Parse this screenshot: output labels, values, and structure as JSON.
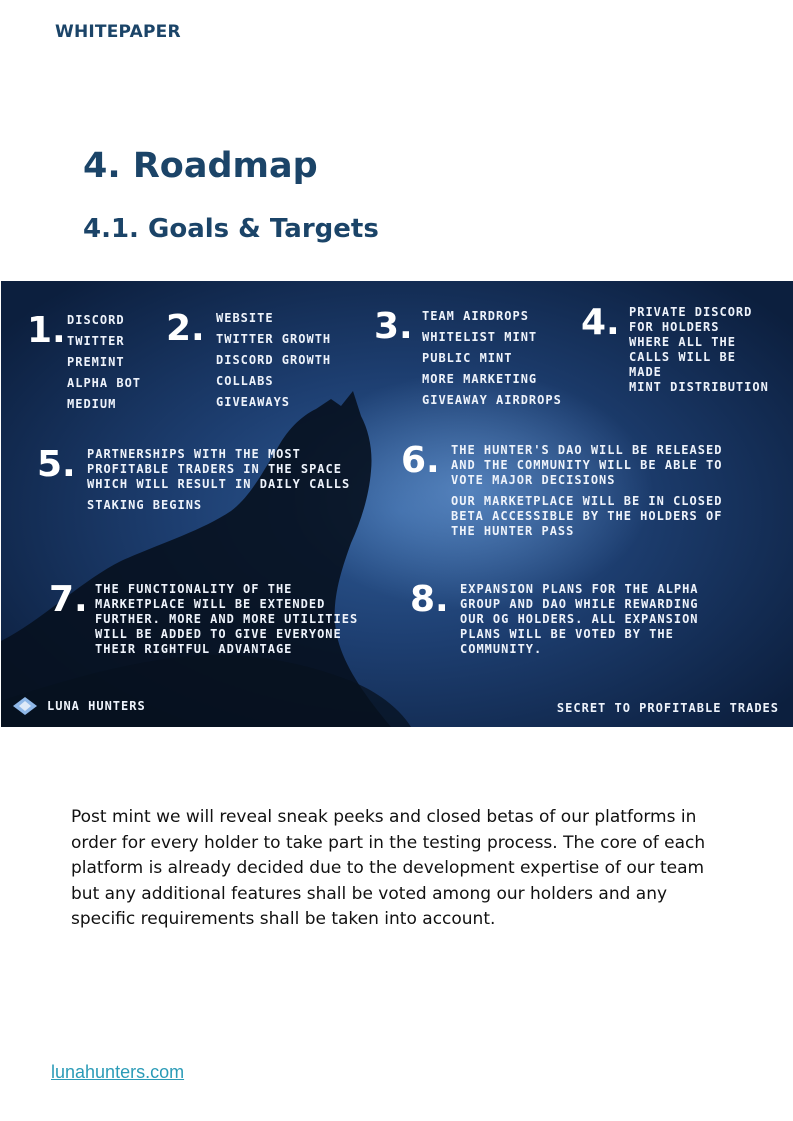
{
  "header": {
    "label": "WHITEPAPER"
  },
  "section": {
    "title": "4. Roadmap",
    "subtitle": "4.1. Goals & Targets"
  },
  "roadmap": {
    "steps": [
      {
        "number": "1.",
        "items": [
          "DISCORD",
          "TWITTER",
          "PREMINT",
          "ALPHA BOT",
          "MEDIUM"
        ]
      },
      {
        "number": "2.",
        "items": [
          "WEBSITE",
          "TWITTER GROWTH",
          "DISCORD GROWTH",
          "COLLABS",
          "GIVEAWAYS"
        ]
      },
      {
        "number": "3.",
        "items": [
          "TEAM AIRDROPS",
          "WHITELIST MINT",
          "PUBLIC MINT",
          "MORE MARKETING",
          "GIVEAWAY AIRDROPS"
        ]
      },
      {
        "number": "4.",
        "items": [
          "PRIVATE DISCORD",
          "FOR HOLDERS",
          "WHERE ALL THE",
          "CALLS WILL BE",
          "MADE",
          "MINT DISTRIBUTION"
        ]
      },
      {
        "number": "5.",
        "items": [
          "PARTNERSHIPS WITH THE MOST",
          "PROFITABLE TRADERS IN THE SPACE",
          "WHICH WILL RESULT IN DAILY CALLS",
          "STAKING BEGINS"
        ]
      },
      {
        "number": "6.",
        "items": [
          "THE HUNTER'S DAO WILL BE RELEASED",
          "AND THE COMMUNITY WILL BE ABLE TO",
          "VOTE MAJOR DECISIONS",
          "OUR MARKETPLACE WILL BE IN CLOSED",
          "BETA ACCESSIBLE BY THE HOLDERS OF",
          "THE HUNTER PASS"
        ]
      },
      {
        "number": "7.",
        "items": [
          "THE FUNCTIONALITY OF THE",
          "MARKETPLACE WILL BE EXTENDED",
          "FURTHER. MORE AND MORE  UTILITIES",
          "WILL BE ADDED TO GIVE EVERYONE",
          "THEIR RIGHTFUL ADVANTAGE"
        ]
      },
      {
        "number": "8.",
        "items": [
          "EXPANSION PLANS FOR THE ALPHA",
          "GROUP AND DAO WHILE REWARDING",
          "OUR OG HOLDERS. ALL EXPANSION",
          "PLANS WILL BE VOTED BY THE",
          "COMMUNITY."
        ]
      }
    ],
    "brand": "LUNA HUNTERS",
    "tagline": "SECRET TO PROFITABLE TRADES",
    "brand_icon": "diamond-logo-icon"
  },
  "body": {
    "paragraph": "Post mint we will reveal sneak peeks and closed betas of our platforms in order for every holder to take part in the testing process. The core of each platform is already decided due to the development expertise of our team but any additional features shall be voted among our holders and any specific requirements shall be taken into account."
  },
  "footer": {
    "link": "lunahunters.com"
  },
  "colors": {
    "heading": "#1b4468",
    "link": "#2b9bb7",
    "banner_bg": "#1d3e70"
  }
}
